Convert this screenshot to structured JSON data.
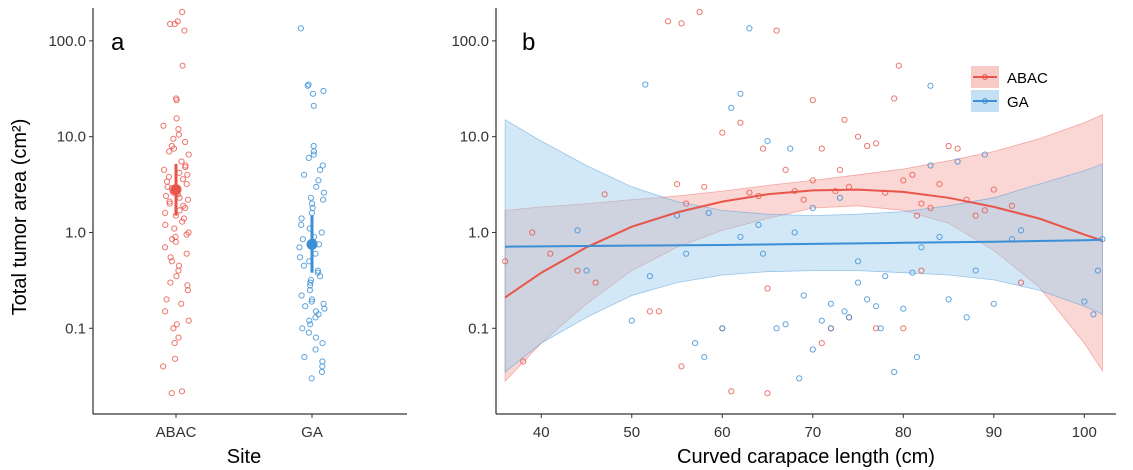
{
  "figure": {
    "panel_a_label": "a",
    "panel_b_label": "b",
    "ylabel": "Total tumor area (cm²)",
    "panel_a_xlabel": "Site",
    "panel_b_xlabel": "Curved carapace length (cm)",
    "colors": {
      "ABAC": "#e8554a",
      "GA": "#3a8fd6",
      "ABAC_fill": "#f4a6a0",
      "GA_fill": "#9ccbee"
    }
  },
  "chart_data": [
    {
      "type": "scatter",
      "panel": "a",
      "xlabel": "Site",
      "ylabel": "Total tumor area (cm²)",
      "y_scale": "log10",
      "ylim": [
        0.017,
        210
      ],
      "yticks": [
        0.1,
        1.0,
        10.0,
        100.0
      ],
      "ytick_labels": [
        "0.1",
        "1.0",
        "10.0",
        "100.0"
      ],
      "categories": [
        "ABAC",
        "GA"
      ],
      "grid": false,
      "series": [
        {
          "name": "ABAC",
          "values": [
            200,
            160,
            150,
            150,
            128,
            55,
            25,
            24,
            15.5,
            13,
            12,
            10.5,
            9.5,
            8.8,
            8,
            7.5,
            7,
            6.5,
            5.5,
            5,
            4.8,
            4.5,
            4.2,
            4,
            3.8,
            3.6,
            3.4,
            3.2,
            3,
            2.9,
            2.8,
            2.7,
            2.6,
            2.5,
            2.4,
            2.3,
            2.2,
            2.1,
            2,
            1.9,
            1.8,
            1.7,
            1.6,
            1.5,
            1.4,
            1.3,
            1.2,
            1.1,
            1,
            0.95,
            0.9,
            0.85,
            0.8,
            0.7,
            0.6,
            0.55,
            0.5,
            0.45,
            0.4,
            0.35,
            0.3,
            0.28,
            0.25,
            0.2,
            0.18,
            0.15,
            0.12,
            0.11,
            0.1,
            0.08,
            0.07,
            0.048,
            0.04,
            0.022,
            0.021
          ],
          "mean": 2.8,
          "ci": [
            1.5,
            5.2
          ]
        },
        {
          "name": "GA",
          "values": [
            135,
            35,
            34,
            30,
            28,
            21,
            8,
            7,
            6.5,
            6,
            5,
            4.5,
            4,
            3.5,
            3,
            2.6,
            2.3,
            2.2,
            2,
            1.8,
            1.6,
            1.4,
            1.2,
            1.1,
            1,
            0.9,
            0.85,
            0.8,
            0.75,
            0.7,
            0.6,
            0.55,
            0.5,
            0.45,
            0.4,
            0.38,
            0.35,
            0.32,
            0.3,
            0.28,
            0.25,
            0.22,
            0.2,
            0.19,
            0.18,
            0.17,
            0.16,
            0.15,
            0.14,
            0.13,
            0.12,
            0.11,
            0.1,
            0.09,
            0.08,
            0.07,
            0.06,
            0.05,
            0.045,
            0.04,
            0.035,
            0.03
          ],
          "mean": 0.75,
          "ci": [
            0.38,
            1.5
          ]
        }
      ]
    },
    {
      "type": "scatter",
      "panel": "b",
      "xlabel": "Curved carapace length (cm)",
      "ylabel": "Total tumor area (cm²)",
      "y_scale": "log10",
      "xlim": [
        35,
        103.5
      ],
      "ylim": [
        0.017,
        210
      ],
      "xticks": [
        40,
        50,
        60,
        70,
        80,
        90,
        100
      ],
      "yticks": [
        0.1,
        1.0,
        10.0,
        100.0
      ],
      "ytick_labels": [
        "0.1",
        "1.0",
        "10.0",
        "100.0"
      ],
      "legend": {
        "position": "top-right",
        "entries": [
          "ABAC",
          "GA"
        ]
      },
      "grid": false,
      "series": [
        {
          "name": "ABAC",
          "points": [
            [
              54,
              160
            ],
            [
              55.5,
              152
            ],
            [
              57.5,
              200
            ],
            [
              66,
              128
            ],
            [
              79.5,
              55
            ],
            [
              36,
              0.5
            ],
            [
              38,
              0.045
            ],
            [
              39,
              1.0
            ],
            [
              41,
              0.6
            ],
            [
              44,
              0.4
            ],
            [
              46,
              0.3
            ],
            [
              47,
              2.5
            ],
            [
              52,
              0.15
            ],
            [
              53,
              0.15
            ],
            [
              55,
              3.2
            ],
            [
              55.5,
              0.04
            ],
            [
              56,
              2.0
            ],
            [
              58,
              3.0
            ],
            [
              60,
              0.1
            ],
            [
              60,
              11
            ],
            [
              61,
              0.022
            ],
            [
              62,
              14
            ],
            [
              63,
              2.6
            ],
            [
              64,
              2.4
            ],
            [
              64.5,
              7.5
            ],
            [
              65,
              0.26
            ],
            [
              65,
              0.021
            ],
            [
              67,
              4.5
            ],
            [
              68,
              2.7
            ],
            [
              69,
              2.2
            ],
            [
              70,
              24
            ],
            [
              70,
              3.5
            ],
            [
              71,
              7.5
            ],
            [
              71,
              0.07
            ],
            [
              72,
              0.1
            ],
            [
              72.5,
              2.7
            ],
            [
              73,
              4.5
            ],
            [
              73.5,
              15
            ],
            [
              74,
              3.0
            ],
            [
              74,
              0.13
            ],
            [
              75,
              10
            ],
            [
              76,
              8
            ],
            [
              77,
              8.5
            ],
            [
              77,
              0.1
            ],
            [
              78,
              2.6
            ],
            [
              79,
              25
            ],
            [
              80,
              3.5
            ],
            [
              80,
              0.1
            ],
            [
              81,
              4.0
            ],
            [
              81.5,
              1.5
            ],
            [
              82,
              2.0
            ],
            [
              82,
              0.4
            ],
            [
              83,
              1.8
            ],
            [
              84,
              3.2
            ],
            [
              85,
              8
            ],
            [
              86,
              7.5
            ],
            [
              87,
              2.2
            ],
            [
              88,
              1.5
            ],
            [
              89,
              1.7
            ],
            [
              90,
              2.8
            ],
            [
              92,
              1.9
            ],
            [
              93,
              0.3
            ]
          ],
          "fit": {
            "x": [
              36,
              40,
              45,
              50,
              55,
              60,
              65,
              70,
              75,
              80,
              85,
              90,
              95,
              100,
              102
            ],
            "y": [
              0.21,
              0.38,
              0.7,
              1.15,
              1.62,
              2.1,
              2.5,
              2.75,
              2.8,
              2.65,
              2.3,
              1.85,
              1.4,
              0.95,
              0.82
            ]
          },
          "ci": {
            "x": [
              36,
              40,
              45,
              50,
              55,
              60,
              65,
              70,
              75,
              80,
              85,
              90,
              95,
              100,
              102
            ],
            "lower": [
              0.028,
              0.07,
              0.18,
              0.4,
              0.7,
              1.05,
              1.4,
              1.8,
              1.9,
              1.7,
              1.25,
              0.65,
              0.27,
              0.07,
              0.036
            ],
            "upper": [
              1.7,
              1.85,
              2.0,
              2.2,
              2.4,
              2.7,
              3.1,
              3.5,
              4.0,
              4.6,
              5.6,
              7.0,
              9.5,
              14,
              17
            ]
          }
        },
        {
          "name": "GA",
          "points": [
            [
              44,
              1.05
            ],
            [
              45,
              0.4
            ],
            [
              50,
              0.12
            ],
            [
              51.5,
              35
            ],
            [
              52,
              0.35
            ],
            [
              55,
              1.5
            ],
            [
              56,
              0.6
            ],
            [
              57,
              0.07
            ],
            [
              58,
              0.05
            ],
            [
              58.5,
              1.6
            ],
            [
              60,
              0.1
            ],
            [
              61,
              20
            ],
            [
              62,
              28
            ],
            [
              62,
              0.9
            ],
            [
              63,
              135
            ],
            [
              64,
              1.2
            ],
            [
              64.5,
              0.6
            ],
            [
              65,
              9
            ],
            [
              66,
              0.1
            ],
            [
              67,
              0.11
            ],
            [
              67.5,
              7.5
            ],
            [
              68,
              1.0
            ],
            [
              68.5,
              0.03
            ],
            [
              69,
              0.22
            ],
            [
              70,
              0.06
            ],
            [
              70,
              1.8
            ],
            [
              71,
              0.12
            ],
            [
              72,
              0.1
            ],
            [
              72,
              0.18
            ],
            [
              73,
              2.3
            ],
            [
              73.5,
              0.15
            ],
            [
              74,
              0.13
            ],
            [
              75,
              0.5
            ],
            [
              75,
              0.3
            ],
            [
              76,
              0.2
            ],
            [
              77,
              0.17
            ],
            [
              77.5,
              0.1
            ],
            [
              78,
              0.35
            ],
            [
              79,
              0.035
            ],
            [
              80,
              0.16
            ],
            [
              81,
              0.38
            ],
            [
              81.5,
              0.05
            ],
            [
              82,
              0.7
            ],
            [
              83,
              5
            ],
            [
              83,
              34
            ],
            [
              84,
              0.9
            ],
            [
              85,
              0.2
            ],
            [
              86,
              5.5
            ],
            [
              87,
              0.13
            ],
            [
              88,
              0.4
            ],
            [
              89,
              6.5
            ],
            [
              90,
              0.18
            ],
            [
              92,
              0.85
            ],
            [
              93,
              1.05
            ],
            [
              100,
              0.19
            ],
            [
              101,
              0.14
            ],
            [
              101.5,
              0.4
            ],
            [
              102,
              0.85
            ]
          ],
          "fit": {
            "x": [
              36,
              50,
              60,
              70,
              80,
              90,
              100,
              102
            ],
            "y": [
              0.71,
              0.73,
              0.74,
              0.76,
              0.78,
              0.8,
              0.83,
              0.84
            ]
          },
          "ci": {
            "x": [
              36,
              40,
              45,
              50,
              55,
              60,
              65,
              70,
              75,
              80,
              85,
              90,
              95,
              100,
              102
            ],
            "lower": [
              0.035,
              0.07,
              0.13,
              0.22,
              0.3,
              0.36,
              0.39,
              0.4,
              0.4,
              0.38,
              0.36,
              0.32,
              0.25,
              0.17,
              0.14
            ],
            "upper": [
              15,
              9,
              5,
              3,
              2.1,
              1.7,
              1.55,
              1.5,
              1.55,
              1.65,
              1.9,
              2.3,
              3.2,
              4.4,
              5.2
            ]
          }
        }
      ]
    }
  ]
}
